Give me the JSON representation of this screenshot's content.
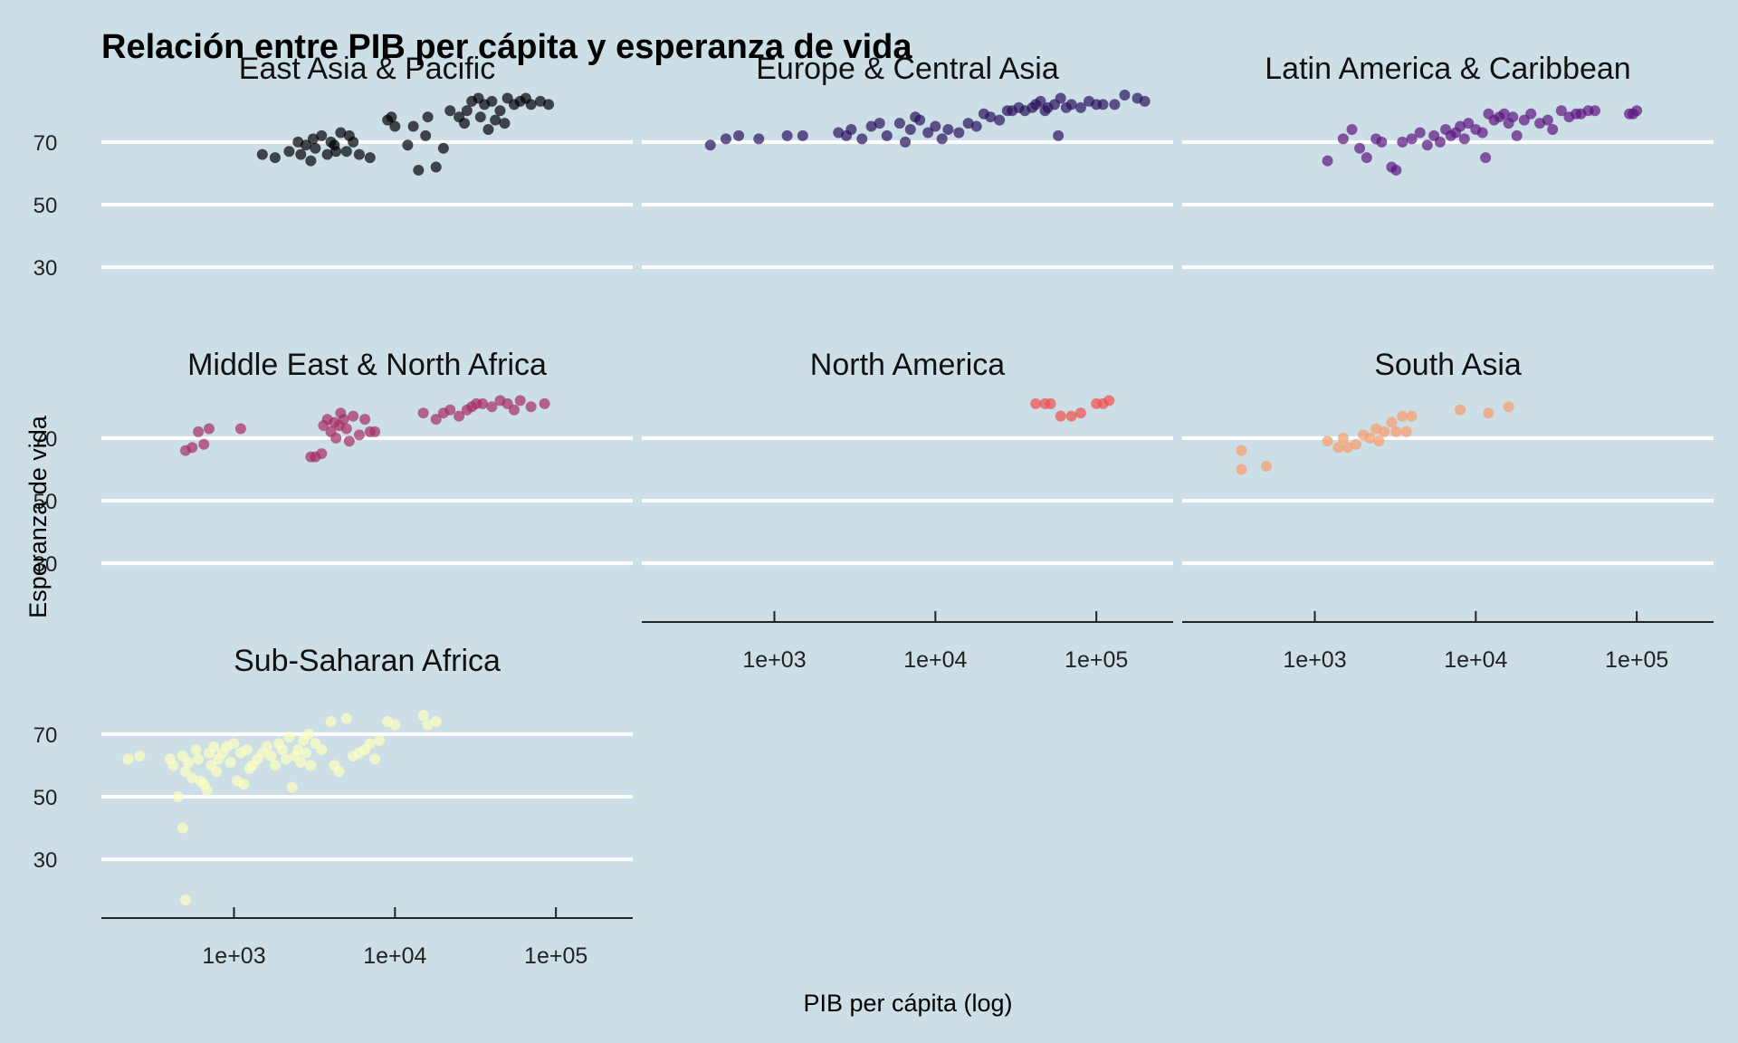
{
  "chart_data": {
    "type": "scatter",
    "title": "Relación entre PIB per cápita y esperanza de vida",
    "xlabel": "PIB per cápita (log)",
    "ylabel": "Esperanza de vida",
    "x_scale": "log10",
    "xlim": [
      150,
      300000
    ],
    "ylim": [
      17,
      85
    ],
    "x_ticks": [
      1000,
      10000,
      100000
    ],
    "x_tick_labels": [
      "1e+03",
      "1e+04",
      "1e+05"
    ],
    "y_ticks": [
      30,
      50,
      70
    ],
    "y_tick_labels": [
      "30",
      "50",
      "70"
    ],
    "grid": "horizontal",
    "background": "#cddfe6",
    "facets": [
      {
        "name": "East Asia & Pacific",
        "color": "#000004",
        "points": [
          [
            1500,
            66
          ],
          [
            1800,
            65
          ],
          [
            2200,
            67
          ],
          [
            2500,
            70
          ],
          [
            2800,
            69
          ],
          [
            3000,
            64
          ],
          [
            3200,
            68
          ],
          [
            3500,
            72
          ],
          [
            3800,
            66
          ],
          [
            4000,
            70
          ],
          [
            4300,
            67
          ],
          [
            4600,
            73
          ],
          [
            5000,
            67
          ],
          [
            5500,
            70
          ],
          [
            6000,
            66
          ],
          [
            7000,
            65
          ],
          [
            9000,
            77
          ],
          [
            10000,
            75
          ],
          [
            12000,
            69
          ],
          [
            14000,
            61
          ],
          [
            16000,
            78
          ],
          [
            18000,
            62
          ],
          [
            20000,
            68
          ],
          [
            22000,
            80
          ],
          [
            25000,
            78
          ],
          [
            28000,
            80
          ],
          [
            30000,
            83
          ],
          [
            33000,
            84
          ],
          [
            36000,
            82
          ],
          [
            40000,
            83
          ],
          [
            42000,
            77
          ],
          [
            45000,
            80
          ],
          [
            48000,
            76
          ],
          [
            50000,
            84
          ],
          [
            55000,
            82
          ],
          [
            60000,
            83
          ],
          [
            65000,
            84
          ],
          [
            70000,
            82
          ],
          [
            80000,
            83
          ],
          [
            90000,
            82
          ],
          [
            9500,
            78
          ],
          [
            13000,
            75
          ],
          [
            15500,
            72
          ],
          [
            3100,
            71
          ],
          [
            2600,
            66
          ],
          [
            4200,
            69
          ],
          [
            5200,
            72
          ],
          [
            34000,
            78
          ],
          [
            38000,
            74
          ],
          [
            27000,
            76
          ]
        ]
      },
      {
        "name": "Europe & Central Asia",
        "color": "#2a115c",
        "points": [
          [
            400,
            69
          ],
          [
            500,
            71
          ],
          [
            600,
            72
          ],
          [
            800,
            71
          ],
          [
            1200,
            72
          ],
          [
            1500,
            72
          ],
          [
            2500,
            73
          ],
          [
            3000,
            74
          ],
          [
            3500,
            71
          ],
          [
            4000,
            75
          ],
          [
            5000,
            72
          ],
          [
            6000,
            76
          ],
          [
            7000,
            74
          ],
          [
            8000,
            77
          ],
          [
            9000,
            73
          ],
          [
            10000,
            75
          ],
          [
            11000,
            71
          ],
          [
            12000,
            74
          ],
          [
            14000,
            73
          ],
          [
            16000,
            76
          ],
          [
            18000,
            75
          ],
          [
            20000,
            79
          ],
          [
            22000,
            78
          ],
          [
            25000,
            77
          ],
          [
            28000,
            80
          ],
          [
            30000,
            80
          ],
          [
            33000,
            81
          ],
          [
            36000,
            80
          ],
          [
            40000,
            81
          ],
          [
            42000,
            82
          ],
          [
            45000,
            83
          ],
          [
            48000,
            80
          ],
          [
            50000,
            81
          ],
          [
            55000,
            82
          ],
          [
            58000,
            72
          ],
          [
            60000,
            84
          ],
          [
            65000,
            81
          ],
          [
            70000,
            82
          ],
          [
            80000,
            81
          ],
          [
            90000,
            83
          ],
          [
            100000,
            82
          ],
          [
            110000,
            82
          ],
          [
            130000,
            82
          ],
          [
            150000,
            85
          ],
          [
            180000,
            84
          ],
          [
            200000,
            83
          ],
          [
            2800,
            72
          ],
          [
            4500,
            76
          ],
          [
            6500,
            70
          ],
          [
            7500,
            78
          ]
        ]
      },
      {
        "name": "Latin America & Caribbean",
        "color": "#5c167f",
        "points": [
          [
            1200,
            64
          ],
          [
            1500,
            71
          ],
          [
            1700,
            74
          ],
          [
            1900,
            68
          ],
          [
            2100,
            65
          ],
          [
            2400,
            71
          ],
          [
            2600,
            70
          ],
          [
            3000,
            62
          ],
          [
            3200,
            61
          ],
          [
            3500,
            70
          ],
          [
            4000,
            71
          ],
          [
            4500,
            73
          ],
          [
            5000,
            69
          ],
          [
            5500,
            72
          ],
          [
            6000,
            70
          ],
          [
            6500,
            74
          ],
          [
            7000,
            72
          ],
          [
            7500,
            73
          ],
          [
            8000,
            75
          ],
          [
            8500,
            71
          ],
          [
            9000,
            76
          ],
          [
            10000,
            74
          ],
          [
            11000,
            73
          ],
          [
            12000,
            79
          ],
          [
            13000,
            77
          ],
          [
            14000,
            78
          ],
          [
            15000,
            79
          ],
          [
            16000,
            76
          ],
          [
            17000,
            78
          ],
          [
            18000,
            72
          ],
          [
            20000,
            77
          ],
          [
            22000,
            79
          ],
          [
            25000,
            76
          ],
          [
            28000,
            77
          ],
          [
            30000,
            74
          ],
          [
            34000,
            80
          ],
          [
            38000,
            78
          ],
          [
            42000,
            79
          ],
          [
            45000,
            79
          ],
          [
            50000,
            80
          ],
          [
            55000,
            80
          ],
          [
            90000,
            79
          ],
          [
            95000,
            79
          ],
          [
            100000,
            80
          ],
          [
            11500,
            65
          ]
        ]
      },
      {
        "name": "Middle East & North Africa",
        "color": "#a52c60",
        "points": [
          [
            500,
            66
          ],
          [
            550,
            67
          ],
          [
            600,
            72
          ],
          [
            650,
            68
          ],
          [
            700,
            73
          ],
          [
            1100,
            73
          ],
          [
            3000,
            64
          ],
          [
            3200,
            64
          ],
          [
            3500,
            65
          ],
          [
            3600,
            74
          ],
          [
            3800,
            76
          ],
          [
            4000,
            72
          ],
          [
            4200,
            75
          ],
          [
            4300,
            70
          ],
          [
            4500,
            74
          ],
          [
            4600,
            78
          ],
          [
            4800,
            76
          ],
          [
            5000,
            73
          ],
          [
            5200,
            69
          ],
          [
            5500,
            77
          ],
          [
            6000,
            71
          ],
          [
            6500,
            76
          ],
          [
            7000,
            72
          ],
          [
            7500,
            72
          ],
          [
            15000,
            78
          ],
          [
            18000,
            76
          ],
          [
            20000,
            78
          ],
          [
            22000,
            79
          ],
          [
            25000,
            77
          ],
          [
            28000,
            79
          ],
          [
            30000,
            80
          ],
          [
            32000,
            81
          ],
          [
            35000,
            81
          ],
          [
            40000,
            80
          ],
          [
            45000,
            82
          ],
          [
            50000,
            81
          ],
          [
            55000,
            79
          ],
          [
            60000,
            82
          ],
          [
            70000,
            80
          ],
          [
            85000,
            81
          ]
        ]
      },
      {
        "name": "North America",
        "color": "#f04e4c",
        "points": [
          [
            42000,
            81
          ],
          [
            48000,
            81
          ],
          [
            52000,
            81
          ],
          [
            60000,
            77
          ],
          [
            70000,
            77
          ],
          [
            80000,
            78
          ],
          [
            100000,
            81
          ],
          [
            110000,
            81
          ],
          [
            120000,
            82
          ]
        ]
      },
      {
        "name": "South Asia",
        "color": "#f99a6b",
        "points": [
          [
            350,
            60
          ],
          [
            350,
            66
          ],
          [
            500,
            61
          ],
          [
            1200,
            69
          ],
          [
            1400,
            67
          ],
          [
            1500,
            70
          ],
          [
            1600,
            67
          ],
          [
            1800,
            68
          ],
          [
            2000,
            71
          ],
          [
            2200,
            70
          ],
          [
            2400,
            73
          ],
          [
            2500,
            69
          ],
          [
            2700,
            72
          ],
          [
            3000,
            75
          ],
          [
            3200,
            72
          ],
          [
            3500,
            77
          ],
          [
            3700,
            72
          ],
          [
            4000,
            77
          ],
          [
            8000,
            79
          ],
          [
            12000,
            78
          ],
          [
            16000,
            80
          ]
        ]
      },
      {
        "name": "Sub-Saharan Africa",
        "color": "#fcfdbf",
        "points": [
          [
            220,
            62
          ],
          [
            260,
            63
          ],
          [
            400,
            62
          ],
          [
            420,
            60
          ],
          [
            450,
            50
          ],
          [
            480,
            40
          ],
          [
            480,
            63
          ],
          [
            500,
            58
          ],
          [
            500,
            17
          ],
          [
            520,
            61
          ],
          [
            550,
            56
          ],
          [
            580,
            65
          ],
          [
            600,
            62
          ],
          [
            620,
            55
          ],
          [
            650,
            54
          ],
          [
            680,
            52
          ],
          [
            700,
            64
          ],
          [
            720,
            60
          ],
          [
            750,
            66
          ],
          [
            780,
            58
          ],
          [
            800,
            62
          ],
          [
            850,
            64
          ],
          [
            900,
            66
          ],
          [
            950,
            61
          ],
          [
            1000,
            67
          ],
          [
            1050,
            55
          ],
          [
            1100,
            64
          ],
          [
            1150,
            54
          ],
          [
            1200,
            65
          ],
          [
            1300,
            60
          ],
          [
            1400,
            62
          ],
          [
            1500,
            64
          ],
          [
            1600,
            66
          ],
          [
            1700,
            63
          ],
          [
            1800,
            60
          ],
          [
            1900,
            67
          ],
          [
            2000,
            65
          ],
          [
            2100,
            62
          ],
          [
            2200,
            69
          ],
          [
            2300,
            53
          ],
          [
            2400,
            63
          ],
          [
            2500,
            65
          ],
          [
            2600,
            61
          ],
          [
            2700,
            68
          ],
          [
            2800,
            64
          ],
          [
            3000,
            60
          ],
          [
            3200,
            67
          ],
          [
            3500,
            65
          ],
          [
            4000,
            74
          ],
          [
            4200,
            60
          ],
          [
            4500,
            58
          ],
          [
            5000,
            75
          ],
          [
            5500,
            63
          ],
          [
            6000,
            64
          ],
          [
            6500,
            65
          ],
          [
            7000,
            67
          ],
          [
            7500,
            62
          ],
          [
            8000,
            68
          ],
          [
            9000,
            74
          ],
          [
            10000,
            73
          ],
          [
            15000,
            76
          ],
          [
            16000,
            73
          ],
          [
            18000,
            74
          ],
          [
            1250,
            59
          ],
          [
            2900,
            70
          ]
        ]
      }
    ]
  }
}
